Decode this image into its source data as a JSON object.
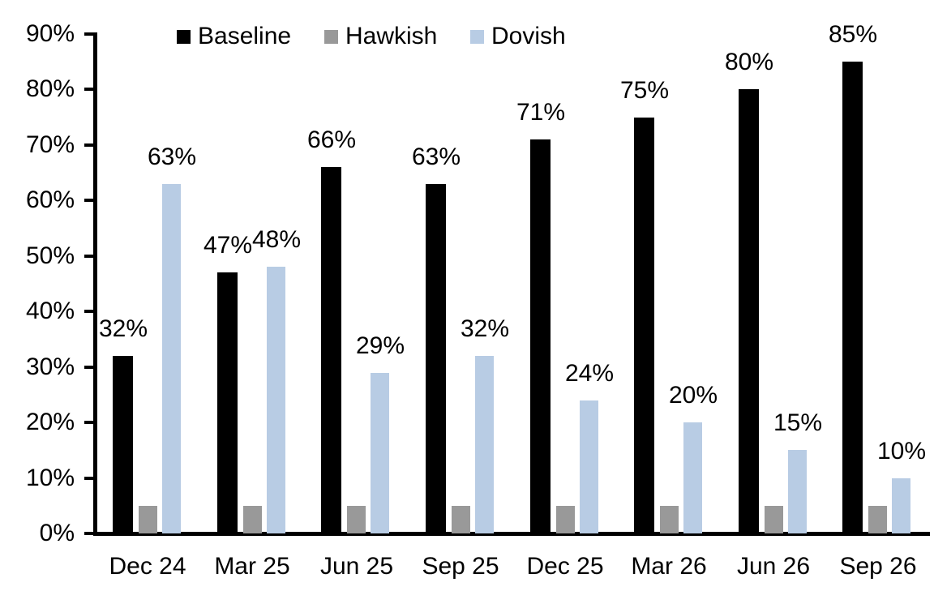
{
  "chart_data": {
    "type": "bar",
    "title": "",
    "xlabel": "",
    "ylabel": "",
    "ylim": [
      0,
      90
    ],
    "ytick_step": 10,
    "ytick_labels": [
      "0%",
      "10%",
      "20%",
      "30%",
      "40%",
      "50%",
      "60%",
      "70%",
      "80%",
      "90%"
    ],
    "grid": false,
    "legend_position": "top",
    "background_color": "#ffffff",
    "axis_color": "#000000",
    "categories": [
      "Dec 24",
      "Mar 25",
      "Jun 25",
      "Sep 25",
      "Dec 25",
      "Mar 26",
      "Jun 26",
      "Sep 26"
    ],
    "series": [
      {
        "name": "Baseline",
        "color": "#000000",
        "values": [
          32,
          47,
          66,
          63,
          71,
          75,
          80,
          85
        ],
        "data_labels": [
          "32%",
          "47%",
          "66%",
          "63%",
          "71%",
          "75%",
          "80%",
          "85%"
        ],
        "show_labels": true
      },
      {
        "name": "Hawkish",
        "color": "#999999",
        "values": [
          5,
          5,
          5,
          5,
          5,
          5,
          5,
          5
        ],
        "data_labels": [],
        "show_labels": false
      },
      {
        "name": "Dovish",
        "color": "#b8cce4",
        "values": [
          63,
          48,
          29,
          32,
          24,
          20,
          15,
          10
        ],
        "data_labels": [
          "63%",
          "48%",
          "29%",
          "32%",
          "24%",
          "20%",
          "15%",
          "10%"
        ],
        "show_labels": true
      }
    ]
  }
}
